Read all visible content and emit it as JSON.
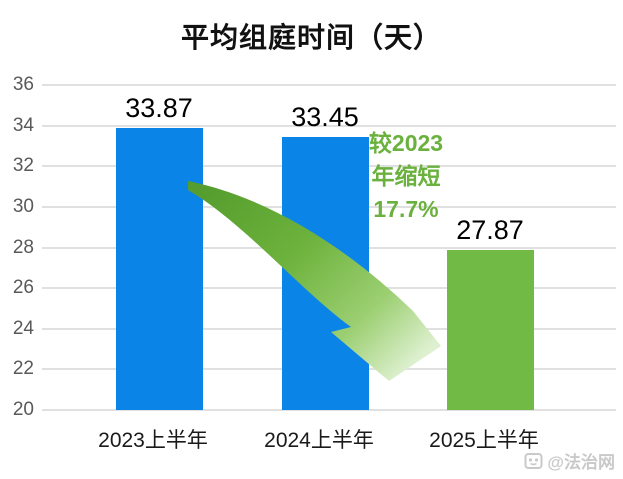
{
  "chart_data": {
    "type": "bar",
    "title": "平均组庭时间（天）",
    "categories": [
      "2023上半年",
      "2024上半年",
      "2025上半年"
    ],
    "values": [
      33.87,
      33.45,
      27.87
    ],
    "data_labels": [
      "33.87",
      "33.45",
      "27.87"
    ],
    "bar_colors": [
      "#0b84e8",
      "#0b84e8",
      "#70ba45"
    ],
    "xlabel": "",
    "ylabel": "",
    "ylim": [
      20,
      36
    ],
    "yticks": [
      36,
      34,
      32,
      30,
      28,
      26,
      24,
      22,
      20
    ],
    "grid": true,
    "legend": false
  },
  "annotation": {
    "text": "较2023年缩短17.7%",
    "lines": [
      "较2023",
      "年缩短",
      "17.7%"
    ],
    "color": "#6ab13d"
  },
  "arrow": {
    "meaning": "decrease-from-2023-to-2025",
    "color_start": "#559d2e",
    "color_end": "#ddf0cf"
  },
  "watermark": {
    "text": "@法治网"
  },
  "colors": {
    "bar_blue": "#0b84e8",
    "bar_green": "#70ba45",
    "gridline": "#e0e0e0",
    "axis_tick_text": "#595959",
    "category_text": "#1a1a1a",
    "title_text": "#111111",
    "annotation_green": "#6ab13d",
    "watermark_gray": "#c9c9c9"
  }
}
